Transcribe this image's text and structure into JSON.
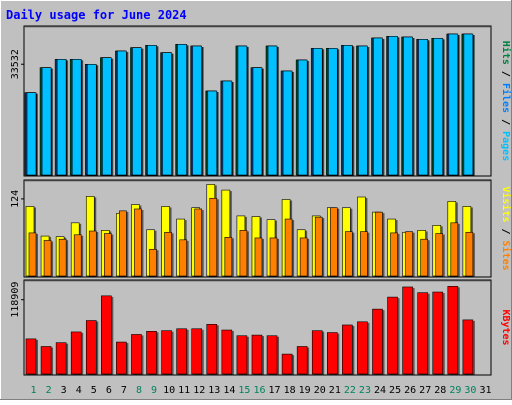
{
  "colors": {
    "background": "#c0c0c0",
    "title": "#0000ff",
    "pages": "#00c0ff",
    "files": "#0080ff",
    "hits": "#008040",
    "sites": "#ff8000",
    "visits": "#ffff00",
    "kbytes": "#ff0000",
    "weekend_day": "#00805c",
    "weekday": "#000000"
  },
  "chart_data": [
    {
      "type": "bar",
      "title": "Daily usage for June 2024",
      "panel": "hits-files-pages",
      "ylabel_parts": [
        "Pages",
        "Files",
        "Hits"
      ],
      "ytick_label": "33532",
      "ytick_value": 33532,
      "ylim": [
        0,
        45000
      ],
      "categories": [
        "1",
        "2",
        "3",
        "4",
        "5",
        "6",
        "7",
        "8",
        "9",
        "10",
        "11",
        "12",
        "13",
        "14",
        "15",
        "16",
        "17",
        "18",
        "19",
        "20",
        "21",
        "22",
        "23",
        "24",
        "25",
        "26",
        "27",
        "28",
        "29",
        "30",
        "31"
      ],
      "series": [
        {
          "name": "Hits",
          "values": [
            25000,
            32500,
            35000,
            35000,
            33500,
            35500,
            37500,
            38500,
            39200,
            37000,
            39500,
            39000,
            25500,
            28500,
            39000,
            32500,
            39000,
            31500,
            34800,
            38300,
            38300,
            39200,
            39000,
            41400,
            41900,
            41700,
            41000,
            41300,
            42600,
            42600,
            null
          ]
        },
        {
          "name": "Files",
          "values": [
            25000,
            32500,
            35000,
            35000,
            33500,
            35500,
            37500,
            38500,
            39200,
            37000,
            39500,
            39000,
            25500,
            28500,
            39000,
            32500,
            39000,
            31500,
            34800,
            38300,
            38300,
            39200,
            39000,
            41400,
            41900,
            41700,
            41000,
            41300,
            42600,
            42600,
            null
          ]
        },
        {
          "name": "Pages",
          "values": [
            25000,
            32500,
            35000,
            35000,
            33500,
            35500,
            37500,
            38500,
            39200,
            37000,
            39500,
            39000,
            25500,
            28500,
            39000,
            32500,
            39000,
            31500,
            34800,
            38300,
            38300,
            39200,
            39000,
            41400,
            41900,
            41700,
            41000,
            41300,
            42600,
            42600,
            null
          ]
        }
      ]
    },
    {
      "type": "bar",
      "panel": "visits-sites",
      "ylabel_parts": [
        "Sites",
        "Visits"
      ],
      "ytick_label": "124",
      "ytick_value": 124,
      "ylim": [
        0,
        154
      ],
      "categories": [
        "1",
        "2",
        "3",
        "4",
        "5",
        "6",
        "7",
        "8",
        "9",
        "10",
        "11",
        "12",
        "13",
        "14",
        "15",
        "16",
        "17",
        "18",
        "19",
        "20",
        "21",
        "22",
        "23",
        "24",
        "25",
        "26",
        "27",
        "28",
        "29",
        "30",
        "31"
      ],
      "series": [
        {
          "name": "Visits",
          "values": [
            112,
            65,
            64,
            86,
            128,
            74,
            101,
            115,
            75,
            112,
            92,
            110,
            147,
            138,
            97,
            96,
            91,
            123,
            75,
            97,
            110,
            110,
            127,
            103,
            92,
            71,
            74,
            82,
            120,
            112,
            null
          ]
        },
        {
          "name": "Sites",
          "values": [
            70,
            58,
            60,
            67,
            73,
            69,
            105,
            108,
            44,
            71,
            59,
            108,
            125,
            63,
            74,
            62,
            62,
            92,
            62,
            95,
            110,
            72,
            72,
            103,
            70,
            72,
            60,
            69,
            86,
            71,
            null
          ]
        }
      ]
    },
    {
      "type": "bar",
      "panel": "kbytes",
      "ylabel_parts": [
        "KBytes"
      ],
      "ytick_label": "118909",
      "ytick_value": 118909,
      "ylim": [
        0,
        150000
      ],
      "categories": [
        "1",
        "2",
        "3",
        "4",
        "5",
        "6",
        "7",
        "8",
        "9",
        "10",
        "11",
        "12",
        "13",
        "14",
        "15",
        "16",
        "17",
        "18",
        "19",
        "20",
        "21",
        "22",
        "23",
        "24",
        "25",
        "26",
        "27",
        "28",
        "29",
        "30",
        "31"
      ],
      "series": [
        {
          "name": "KBytes",
          "values": [
            57000,
            45000,
            51000,
            68000,
            86000,
            125000,
            52000,
            64000,
            69000,
            70000,
            73000,
            73000,
            80000,
            71000,
            62000,
            63000,
            62000,
            33000,
            45000,
            70000,
            67000,
            79000,
            84000,
            104000,
            123000,
            139000,
            130000,
            131000,
            140000,
            87000,
            null
          ]
        }
      ]
    }
  ]
}
